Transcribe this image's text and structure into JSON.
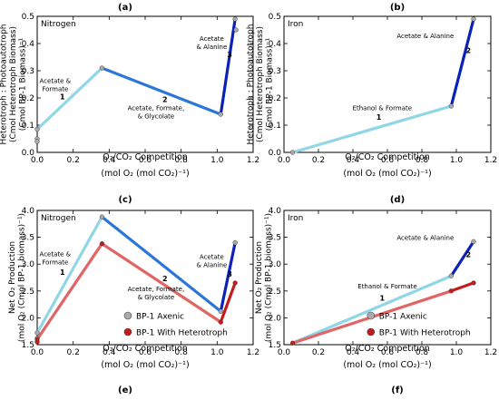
{
  "chart_data": [
    {
      "type": "line",
      "panel_label": "(a)",
      "annotation": "Nitrogen",
      "xlabel": "O$_2$/CO$_2$ Competition",
      "xlabel_line1": "O₂/CO₂ Competition",
      "xlabel_line2": "(mol O₂ (mol CO₂)⁻¹)",
      "ylabel_lines": [
        "Heterotroph : Photoautotroph",
        "(Cmol Heterotroph Biomass)",
        "(Cmol BP-1 Biomass)⁻¹"
      ],
      "xlim": [
        0,
        1.2
      ],
      "ylim": [
        0,
        0.5
      ],
      "xticks": [
        "0.0",
        "0.2",
        "0.4",
        "0.6",
        "0.8",
        "1.0",
        "1.2"
      ],
      "yticks": [
        "0.0",
        "0.1",
        "0.2",
        "0.3",
        "0.4",
        "0.5"
      ],
      "series": [
        {
          "color": "#8fd6e6",
          "x": [
            0.0,
            0.36
          ],
          "y": [
            0.085,
            0.31
          ]
        },
        {
          "color": "#2b77d8",
          "x": [
            0.36,
            1.02
          ],
          "y": [
            0.31,
            0.14
          ]
        },
        {
          "color": "#0a22b8",
          "x": [
            1.02,
            1.1
          ],
          "y": [
            0.14,
            0.49
          ]
        }
      ],
      "points": [
        {
          "x": 0.0,
          "y": 0.085
        },
        {
          "x": 0.0,
          "y": 0.05
        },
        {
          "x": 0.0,
          "y": 0.04
        },
        {
          "x": 0.36,
          "y": 0.31
        },
        {
          "x": 1.02,
          "y": 0.14
        },
        {
          "x": 1.1,
          "y": 0.49
        },
        {
          "x": 1.105,
          "y": 0.45
        }
      ],
      "texts": [
        {
          "lines": [
            "Acetate &",
            "Formate"
          ],
          "x": 0.1,
          "y": 0.255
        },
        {
          "lines": [
            "1"
          ],
          "x": 0.14,
          "y": 0.195,
          "bold": true
        },
        {
          "lines": [
            "2"
          ],
          "x": 0.71,
          "y": 0.185,
          "bold": true
        },
        {
          "lines": [
            "Acetate, Formate,",
            "& Glycolate"
          ],
          "x": 0.66,
          "y": 0.155
        },
        {
          "lines": [
            "Acetate",
            "& Alanine"
          ],
          "x": 0.97,
          "y": 0.41
        },
        {
          "lines": [
            "3"
          ],
          "x": 1.07,
          "y": 0.35,
          "bold": true
        }
      ]
    },
    {
      "type": "line",
      "panel_label": "(b)",
      "annotation": "Iron",
      "xlabel_line1": "O₂/CO₂ Competition",
      "xlabel_line2": "(mol O₂ (mol CO₂)⁻¹)",
      "ylabel_lines": [
        "Heterotroph : Photoautotroph",
        "(Cmol Heterotroph Biomass)",
        "(Cmol BP-1 Biomass)⁻¹"
      ],
      "xlim": [
        0,
        1.2
      ],
      "ylim": [
        0,
        0.5
      ],
      "xticks": [
        "0.0",
        "0.2",
        "0.4",
        "0.6",
        "0.8",
        "1.0",
        "1.2"
      ],
      "yticks": [
        "0.0",
        "0.1",
        "0.2",
        "0.3",
        "0.4",
        "0.5"
      ],
      "series": [
        {
          "color": "#8fd6e6",
          "x": [
            0.05,
            0.97
          ],
          "y": [
            0.0,
            0.17
          ]
        },
        {
          "color": "#0a22b8",
          "x": [
            0.97,
            1.1
          ],
          "y": [
            0.17,
            0.49
          ]
        }
      ],
      "points": [
        {
          "x": 0.05,
          "y": 0.0
        },
        {
          "x": 0.97,
          "y": 0.17
        },
        {
          "x": 1.1,
          "y": 0.49
        }
      ],
      "texts": [
        {
          "lines": [
            "Acetate & Alanine"
          ],
          "x": 0.82,
          "y": 0.42
        },
        {
          "lines": [
            "2"
          ],
          "x": 1.07,
          "y": 0.365,
          "bold": true
        },
        {
          "lines": [
            "Ethanol & Formate"
          ],
          "x": 0.57,
          "y": 0.155
        },
        {
          "lines": [
            "1"
          ],
          "x": 0.55,
          "y": 0.12,
          "bold": true
        }
      ]
    },
    {
      "type": "line",
      "panel_label": "(c)",
      "annotation": "Nitrogen",
      "xlabel_line1": "O₂/CO₂ Competition",
      "xlabel_line2": "(mol O₂ (mol CO₂)⁻¹)",
      "ylabel_lines": [
        "Net O₂ Production",
        "(mol O₂ (Cmol BP-1 biomass)⁻¹)"
      ],
      "xlim": [
        0,
        1.2
      ],
      "ylim": [
        1.5,
        4.0
      ],
      "xticks": [
        "0.0",
        "0.2",
        "0.4",
        "0.6",
        "0.8",
        "1.0",
        "1.2"
      ],
      "yticks": [
        "1.5",
        "2.0",
        "2.5",
        "3.0",
        "3.5",
        "4.0"
      ],
      "series": [
        {
          "name": "BP-1 Axenic",
          "color": "#8fd6e6",
          "x": [
            0.0,
            0.36
          ],
          "y": [
            1.72,
            3.88
          ]
        },
        {
          "color": "#2b77d8",
          "x": [
            0.36,
            1.02
          ],
          "y": [
            3.88,
            2.12
          ]
        },
        {
          "color": "#0a22b8",
          "x": [
            1.02,
            1.1
          ],
          "y": [
            2.12,
            3.4
          ]
        },
        {
          "name": "BP-1 With Heterotroph",
          "color": "#e06666",
          "x": [
            0.0,
            0.36
          ],
          "y": [
            1.6,
            3.38
          ]
        },
        {
          "color": "#e06666",
          "x": [
            0.36,
            1.02
          ],
          "y": [
            3.38,
            1.92
          ]
        },
        {
          "color": "#c41c1c",
          "x": [
            1.02,
            1.1
          ],
          "y": [
            1.92,
            2.65
          ]
        }
      ],
      "points": [
        {
          "x": 0.0,
          "y": 1.72,
          "kind": "axenic"
        },
        {
          "x": 0.0,
          "y": 1.62,
          "kind": "axenic"
        },
        {
          "x": 0.36,
          "y": 3.88,
          "kind": "axenic"
        },
        {
          "x": 1.02,
          "y": 2.12,
          "kind": "axenic"
        },
        {
          "x": 1.1,
          "y": 3.4,
          "kind": "axenic"
        },
        {
          "x": 0.0,
          "y": 1.6,
          "kind": "het"
        },
        {
          "x": 0.0,
          "y": 1.55,
          "kind": "het"
        },
        {
          "x": 0.36,
          "y": 3.38,
          "kind": "het"
        },
        {
          "x": 1.02,
          "y": 1.92,
          "kind": "het"
        },
        {
          "x": 1.1,
          "y": 2.65,
          "kind": "het"
        }
      ],
      "texts": [
        {
          "lines": [
            "Acetate &",
            "Formate"
          ],
          "x": 0.1,
          "y": 3.15
        },
        {
          "lines": [
            "1"
          ],
          "x": 0.14,
          "y": 2.8,
          "bold": true
        },
        {
          "lines": [
            "2"
          ],
          "x": 0.71,
          "y": 2.68,
          "bold": true
        },
        {
          "lines": [
            "Acetate, Formate,",
            "& Glycolate"
          ],
          "x": 0.66,
          "y": 2.5
        },
        {
          "lines": [
            "Acetate",
            "& Alanine"
          ],
          "x": 0.97,
          "y": 3.1
        },
        {
          "lines": [
            "3"
          ],
          "x": 1.07,
          "y": 2.77,
          "bold": true
        }
      ],
      "legend": [
        {
          "label": "BP-1 Axenic",
          "color": "#aaaaaa"
        },
        {
          "label": "BP-1 With Heterotroph",
          "color": "#c41c1c"
        }
      ]
    },
    {
      "type": "line",
      "panel_label": "(d)",
      "annotation": "Iron",
      "xlabel_line1": "O₂/CO₂ Competition",
      "xlabel_line2": "(mol O₂ (mol CO₂)⁻¹)",
      "ylabel_lines": [
        "Net O₂ Production",
        "(mol O₂ (Cmol BP-1 biomass)⁻¹)"
      ],
      "xlim": [
        0,
        1.2
      ],
      "ylim": [
        1.5,
        4.0
      ],
      "xticks": [
        "0.0",
        "0.2",
        "0.4",
        "0.6",
        "0.8",
        "1.0",
        "1.2"
      ],
      "yticks": [
        "1.5",
        "2.0",
        "2.5",
        "3.0",
        "3.5",
        "4.0"
      ],
      "series": [
        {
          "name": "BP-1 Axenic",
          "color": "#8fd6e6",
          "x": [
            0.05,
            0.97
          ],
          "y": [
            1.53,
            2.78
          ]
        },
        {
          "color": "#0a22b8",
          "x": [
            0.97,
            1.1
          ],
          "y": [
            2.78,
            3.42
          ]
        },
        {
          "name": "BP-1 With Heterotroph",
          "color": "#e06666",
          "x": [
            0.05,
            0.97
          ],
          "y": [
            1.53,
            2.5
          ]
        },
        {
          "color": "#c41c1c",
          "x": [
            0.97,
            1.1
          ],
          "y": [
            2.5,
            2.65
          ]
        }
      ],
      "points": [
        {
          "x": 0.97,
          "y": 2.78,
          "kind": "axenic"
        },
        {
          "x": 1.1,
          "y": 3.42,
          "kind": "axenic"
        },
        {
          "x": 0.05,
          "y": 1.53,
          "kind": "het"
        },
        {
          "x": 0.97,
          "y": 2.5,
          "kind": "het"
        },
        {
          "x": 1.1,
          "y": 2.65,
          "kind": "het"
        }
      ],
      "texts": [
        {
          "lines": [
            "Acetate & Alanine"
          ],
          "x": 0.82,
          "y": 3.45
        },
        {
          "lines": [
            "2"
          ],
          "x": 1.07,
          "y": 3.13,
          "bold": true
        },
        {
          "lines": [
            "Ethanol & Formate"
          ],
          "x": 0.6,
          "y": 2.55
        },
        {
          "lines": [
            "1"
          ],
          "x": 0.57,
          "y": 2.32,
          "bold": true
        }
      ],
      "legend": [
        {
          "label": "BP-1 Axenic",
          "color": "#aaaaaa"
        },
        {
          "label": "BP-1 With Heterotroph",
          "color": "#c41c1c"
        }
      ]
    }
  ],
  "extra_labels": {
    "e": "(e)",
    "f": "(f)"
  }
}
